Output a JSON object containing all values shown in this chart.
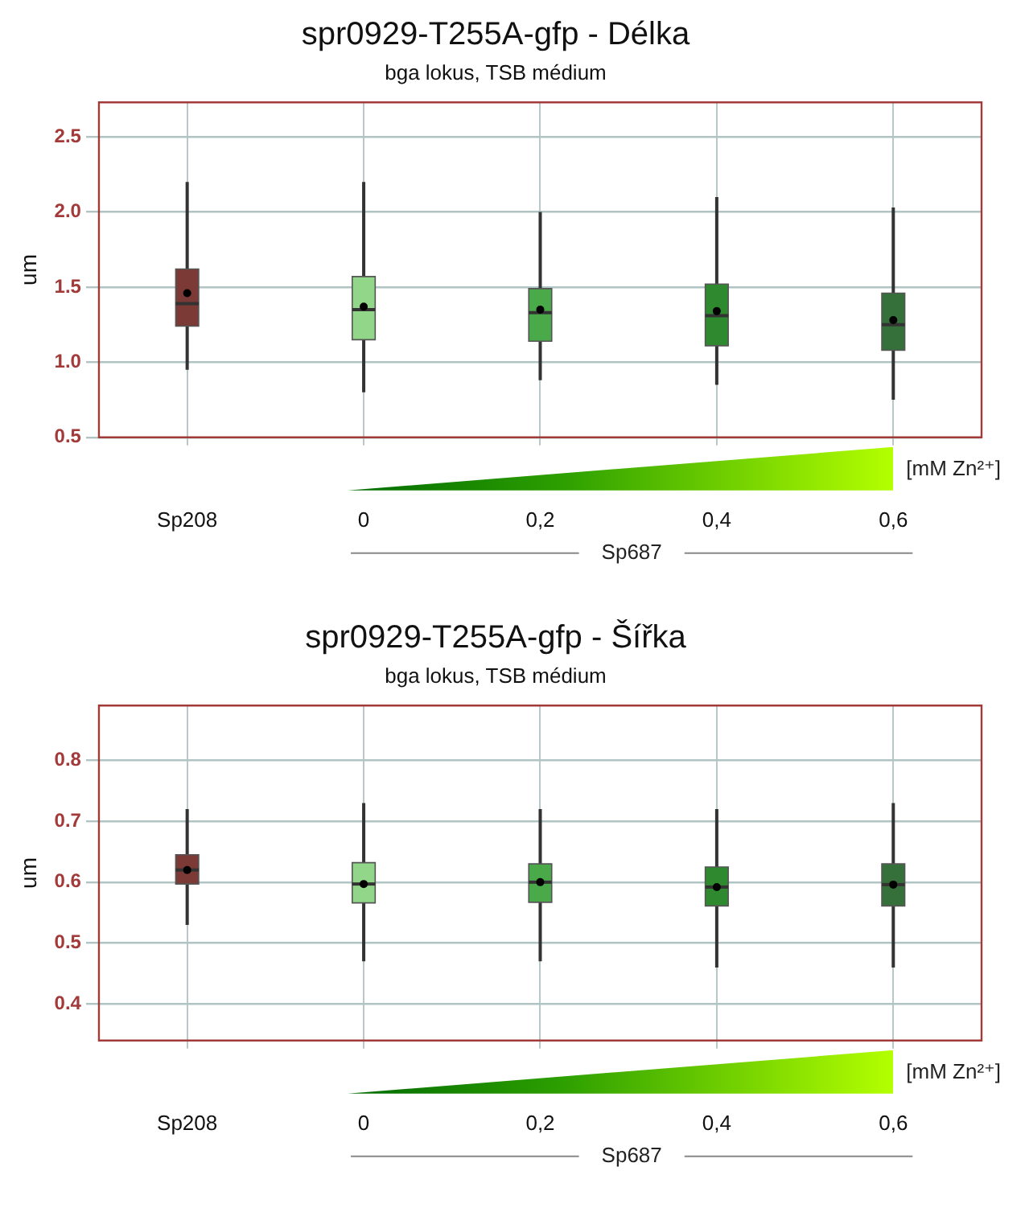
{
  "chart_data": [
    {
      "type": "box",
      "title": "spr0929-T255A-gfp - Délka",
      "subtitle": "bga lokus, TSB médium",
      "ylabel": "um",
      "categories": [
        "Sp208",
        "0",
        "0,2",
        "0,4",
        "0,6"
      ],
      "colors": [
        "#7b3a36",
        "#92d68a",
        "#4aaa4a",
        "#2f8a2f",
        "#35703a"
      ],
      "boxes": [
        {
          "low": 0.95,
          "q1": 1.24,
          "median": 1.39,
          "q3": 1.62,
          "high": 2.2,
          "mean": 1.46
        },
        {
          "low": 0.8,
          "q1": 1.15,
          "median": 1.35,
          "q3": 1.57,
          "high": 2.2,
          "mean": 1.37
        },
        {
          "low": 0.88,
          "q1": 1.14,
          "median": 1.33,
          "q3": 1.49,
          "high": 2.0,
          "mean": 1.35
        },
        {
          "low": 0.85,
          "q1": 1.11,
          "median": 1.31,
          "q3": 1.52,
          "high": 2.1,
          "mean": 1.34
        },
        {
          "low": 0.75,
          "q1": 1.08,
          "median": 1.25,
          "q3": 1.46,
          "high": 2.03,
          "mean": 1.28
        }
      ],
      "ylim": [
        0.5,
        2.73
      ],
      "yticks": [
        {
          "value": 0.5,
          "label": "0.5"
        },
        {
          "value": 1,
          "label": "1.0"
        },
        {
          "value": 1.5,
          "label": "1.5"
        },
        {
          "value": 2,
          "label": "2.0"
        },
        {
          "value": 2.5,
          "label": "2.5"
        }
      ],
      "grid": true,
      "annotations": [
        "[mM Zn²⁺]",
        "Sp687"
      ]
    },
    {
      "type": "box",
      "title": "spr0929-T255A-gfp - Šířka",
      "subtitle": "bga lokus, TSB médium",
      "ylabel": "um",
      "categories": [
        "Sp208",
        "0",
        "0,2",
        "0,4",
        "0,6"
      ],
      "colors": [
        "#7b3a36",
        "#92d68a",
        "#4aaa4a",
        "#2f8a2f",
        "#35703a"
      ],
      "boxes": [
        {
          "low": 0.53,
          "q1": 0.597,
          "median": 0.62,
          "q3": 0.645,
          "high": 0.72,
          "mean": 0.62
        },
        {
          "low": 0.47,
          "q1": 0.566,
          "median": 0.597,
          "q3": 0.632,
          "high": 0.73,
          "mean": 0.597
        },
        {
          "low": 0.47,
          "q1": 0.567,
          "median": 0.6,
          "q3": 0.63,
          "high": 0.72,
          "mean": 0.6
        },
        {
          "low": 0.46,
          "q1": 0.561,
          "median": 0.592,
          "q3": 0.625,
          "high": 0.72,
          "mean": 0.592
        },
        {
          "low": 0.46,
          "q1": 0.561,
          "median": 0.596,
          "q3": 0.63,
          "high": 0.73,
          "mean": 0.596
        }
      ],
      "ylim": [
        0.34,
        0.89
      ],
      "yticks": [
        0.4,
        0.5,
        0.6,
        0.7,
        0.8
      ],
      "grid": true,
      "annotations": [
        "[mM Zn²⁺]",
        "Sp687"
      ]
    }
  ]
}
